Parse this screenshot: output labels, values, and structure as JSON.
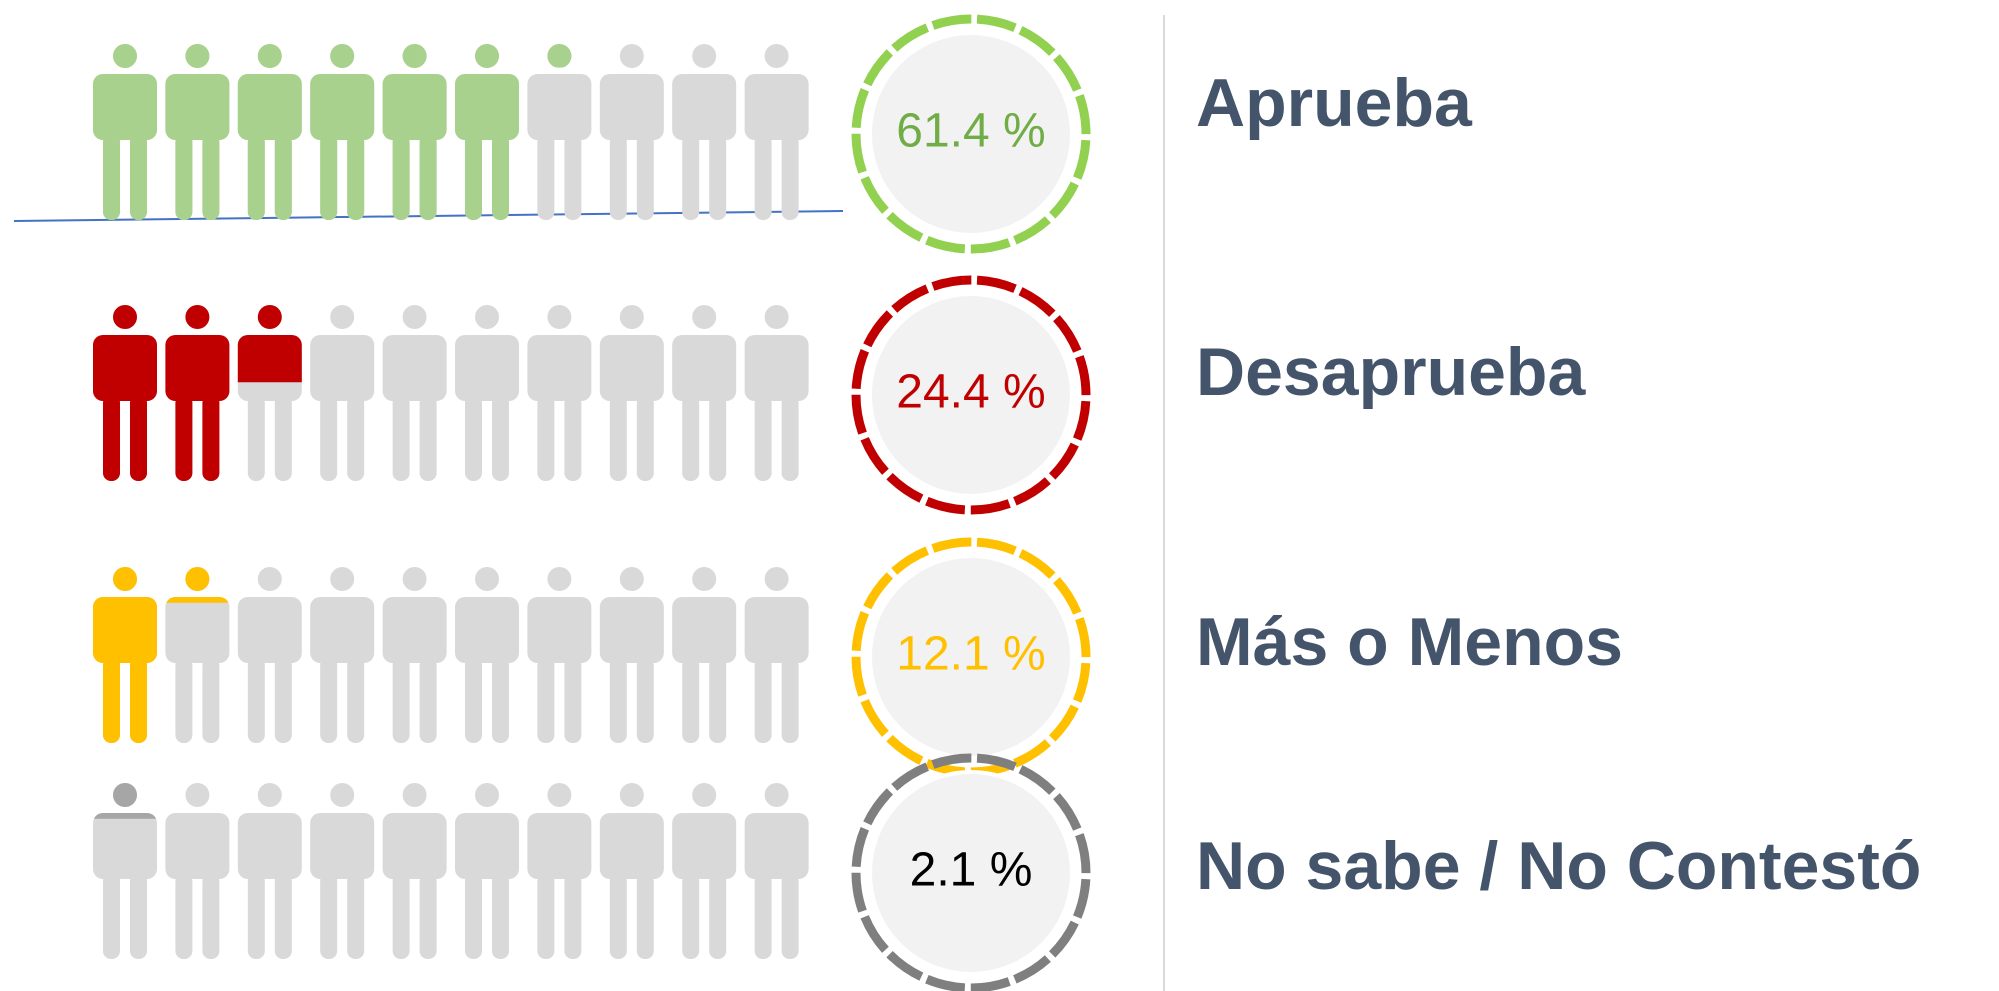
{
  "chart_data": {
    "type": "pictogram",
    "categories": [
      "Aprueba",
      "Desaprueba",
      "Más o Menos",
      "No sabe / No Contestó"
    ],
    "values": [
      61.4,
      24.4,
      12.1,
      2.1
    ],
    "value_labels": [
      "61.4 %",
      "24.4 %",
      "12.1 %",
      "2.1 %"
    ],
    "colors": [
      "#a9d18e",
      "#c00000",
      "#ffc000",
      "#a6a6a6"
    ],
    "ring_colors": [
      "#92d050",
      "#c00000",
      "#ffc000",
      "#7f7f7f"
    ],
    "label_colors": [
      "#70ad47",
      "#c00000",
      "#ffc000",
      "#000000"
    ],
    "ylim": [
      0,
      100
    ]
  }
}
